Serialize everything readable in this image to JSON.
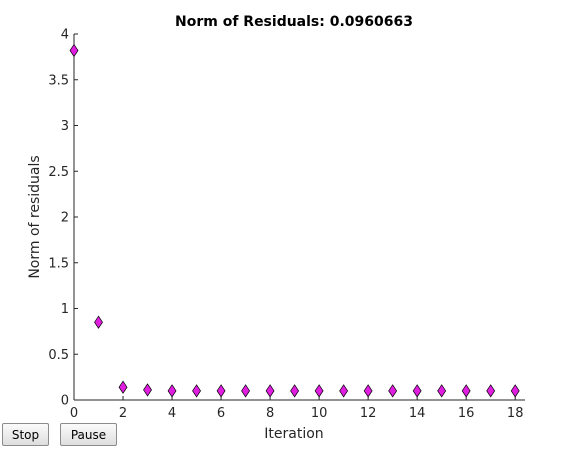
{
  "chart_data": {
    "type": "scatter",
    "title": "Norm of Residuals: 0.0960663",
    "xlabel": "Iteration",
    "ylabel": "Norm of residuals",
    "xlim": [
      0,
      18.4
    ],
    "ylim": [
      0,
      4
    ],
    "xticks": [
      0,
      2,
      4,
      6,
      8,
      10,
      12,
      14,
      16,
      18
    ],
    "yticks": [
      0,
      0.5,
      1,
      1.5,
      2,
      2.5,
      3,
      3.5,
      4
    ],
    "grid": false,
    "marker": "diamond",
    "marker_color": "#e01ee0",
    "x": [
      0,
      1,
      2,
      3,
      4,
      5,
      6,
      7,
      8,
      9,
      10,
      11,
      12,
      13,
      14,
      15,
      16,
      17,
      18
    ],
    "y": [
      3.82,
      0.85,
      0.14,
      0.11,
      0.1,
      0.1,
      0.1,
      0.1,
      0.1,
      0.1,
      0.1,
      0.1,
      0.1,
      0.1,
      0.1,
      0.1,
      0.1,
      0.1,
      0.1
    ]
  },
  "controls": {
    "stop_label": "Stop",
    "pause_label": "Pause"
  }
}
